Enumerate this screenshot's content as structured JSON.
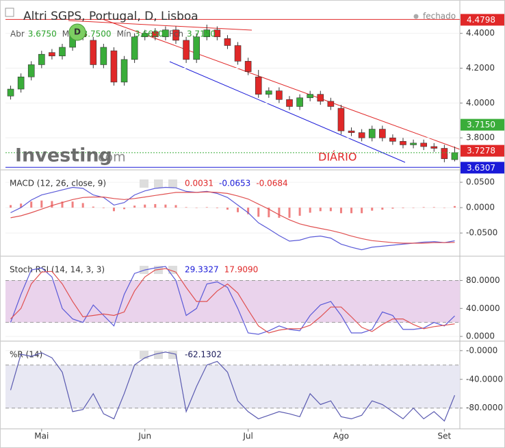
{
  "chart_data": [
    {
      "type": "candlestick",
      "title": "Altri SGPS, Portugal, D, Lisboa",
      "status": "fechado",
      "ohlc_legend": [
        {
          "label": "Abr",
          "value": "3.6750"
        },
        {
          "label": "Máx",
          "value": "3.7500"
        },
        {
          "label": "Mín",
          "value": "3.6650"
        },
        {
          "label": "Fch",
          "value": "3.7150"
        }
      ],
      "badge": "D",
      "annotation": "DIÁRIO",
      "watermark": [
        "Investing",
        ".com"
      ],
      "categories": [
        null,
        null,
        null,
        "Mai",
        null,
        null,
        null,
        null,
        null,
        null,
        null,
        null,
        null,
        "Jun",
        null,
        null,
        null,
        null,
        null,
        null,
        null,
        null,
        null,
        "Jul",
        null,
        null,
        null,
        null,
        null,
        null,
        null,
        null,
        "Ago",
        null,
        null,
        null,
        null,
        null,
        null,
        null,
        null,
        null,
        "Set",
        null
      ],
      "open": [
        4.04,
        4.08,
        4.15,
        4.22,
        4.29,
        4.27,
        4.32,
        4.4,
        4.36,
        4.22,
        4.3,
        4.12,
        4.25,
        4.38,
        4.41,
        4.38,
        4.42,
        4.36,
        4.25,
        4.38,
        4.42,
        4.37,
        4.33,
        4.24,
        4.15,
        4.05,
        4.07,
        4.02,
        3.98,
        4.03,
        4.05,
        4.01,
        3.97,
        3.84,
        3.83,
        3.8,
        3.85,
        3.8,
        3.78,
        3.76,
        3.77,
        3.75,
        3.74,
        3.675
      ],
      "high": [
        4.1,
        4.17,
        4.24,
        4.3,
        4.31,
        4.34,
        4.43,
        4.42,
        4.38,
        4.34,
        4.32,
        4.27,
        4.4,
        4.42,
        4.43,
        4.44,
        4.44,
        4.38,
        4.4,
        4.45,
        4.44,
        4.39,
        4.35,
        4.26,
        4.19,
        4.09,
        4.09,
        4.04,
        4.05,
        4.07,
        4.07,
        4.03,
        3.99,
        3.86,
        3.85,
        3.87,
        3.87,
        3.82,
        3.8,
        3.79,
        3.79,
        3.77,
        3.76,
        3.75
      ],
      "low": [
        4.02,
        4.06,
        4.13,
        4.2,
        4.25,
        4.25,
        4.3,
        4.36,
        4.2,
        4.2,
        4.1,
        4.1,
        4.23,
        4.36,
        4.36,
        4.36,
        4.34,
        4.23,
        4.23,
        4.36,
        4.36,
        4.31,
        4.22,
        4.16,
        4.03,
        4.03,
        4.0,
        3.96,
        3.96,
        4.01,
        3.99,
        3.96,
        3.82,
        3.81,
        3.78,
        3.78,
        3.78,
        3.76,
        3.74,
        3.74,
        3.73,
        3.72,
        3.66,
        3.665
      ],
      "close": [
        4.08,
        4.15,
        4.22,
        4.28,
        4.27,
        4.32,
        4.4,
        4.38,
        4.22,
        4.32,
        4.12,
        4.25,
        4.38,
        4.4,
        4.38,
        4.42,
        4.36,
        4.25,
        4.38,
        4.42,
        4.38,
        4.33,
        4.24,
        4.18,
        4.05,
        4.07,
        4.02,
        3.98,
        4.03,
        4.05,
        4.01,
        3.98,
        3.84,
        3.83,
        3.8,
        3.85,
        3.8,
        3.78,
        3.76,
        3.77,
        3.75,
        3.74,
        3.68,
        3.715
      ],
      "up_color": "#3aad3a",
      "down_color": "#e02828",
      "ylim": [
        3.624,
        4.56
      ],
      "yticks": [
        {
          "value": 3.8,
          "label": "3.8000"
        },
        {
          "value": 4.0,
          "label": "4.0000"
        },
        {
          "value": 4.2,
          "label": "4.2000"
        },
        {
          "value": 4.4,
          "label": "4.4000"
        }
      ],
      "price_labels": [
        {
          "value": 4.4798,
          "color": "#e02828",
          "line": "solid"
        },
        {
          "value": 3.7278,
          "color": "#e02828"
        },
        {
          "value": 3.715,
          "label": "3.7150",
          "color": "#3aad3a",
          "line": "dotted"
        },
        {
          "value": 3.6307,
          "color": "#1a1ad8",
          "line": "solid"
        }
      ]
    },
    {
      "type": "macd",
      "title": "MACD (12, 26, close, 9)",
      "legend_values": [
        {
          "text": "0.0031",
          "color": "#e02828"
        },
        {
          "text": "-0.0653",
          "color": "#1a1ad8"
        },
        {
          "text": "-0.0684",
          "color": "#e02828"
        }
      ],
      "series": [
        {
          "style": "bar",
          "color": "#f08080",
          "values": [
            0.005,
            0.008,
            0.012,
            0.014,
            0.013,
            0.012,
            0.012,
            0.009,
            0.002,
            -0.001,
            -0.007,
            -0.003,
            0.004,
            0.006,
            0.007,
            0.006,
            0.005,
            0.001,
            0,
            0.001,
            -0.001,
            -0.004,
            -0.009,
            -0.013,
            -0.018,
            -0.019,
            -0.02,
            -0.02,
            -0.016,
            -0.01,
            -0.007,
            -0.007,
            -0.011,
            -0.011,
            -0.011,
            -0.006,
            -0.004,
            -0.002,
            -0.001,
            0,
            0.001,
            0.001,
            0,
            0.0031
          ]
        },
        {
          "style": "line",
          "color": "#5a5ad8",
          "values": [
            -0.01,
            0.0,
            0.015,
            0.025,
            0.03,
            0.035,
            0.04,
            0.038,
            0.025,
            0.02,
            0.005,
            0.01,
            0.025,
            0.033,
            0.038,
            0.04,
            0.039,
            0.032,
            0.03,
            0.032,
            0.028,
            0.02,
            0.005,
            -0.01,
            -0.03,
            -0.042,
            -0.055,
            -0.066,
            -0.064,
            -0.058,
            -0.056,
            -0.06,
            -0.072,
            -0.078,
            -0.083,
            -0.078,
            -0.076,
            -0.074,
            -0.072,
            -0.07,
            -0.068,
            -0.067,
            -0.069,
            -0.0653
          ]
        },
        {
          "style": "line",
          "color": "#e05050",
          "values": [
            -0.02,
            -0.016,
            -0.01,
            -0.003,
            0.004,
            0.01,
            0.016,
            0.02,
            0.021,
            0.021,
            0.018,
            0.016,
            0.018,
            0.021,
            0.024,
            0.027,
            0.03,
            0.03,
            0.03,
            0.031,
            0.03,
            0.028,
            0.023,
            0.017,
            0.007,
            -0.003,
            -0.014,
            -0.024,
            -0.032,
            -0.037,
            -0.041,
            -0.045,
            -0.05,
            -0.056,
            -0.061,
            -0.065,
            -0.067,
            -0.069,
            -0.07,
            -0.07,
            -0.07,
            -0.069,
            -0.069,
            -0.0684
          ]
        }
      ],
      "ylim": [
        -0.093,
        0.069
      ],
      "yticks": [
        {
          "value": -0.05,
          "label": "-0.0500"
        },
        {
          "value": 0,
          "label": "0.0000"
        },
        {
          "value": 0.05,
          "label": "0.0500"
        }
      ]
    },
    {
      "type": "oscillator",
      "title": "Stoch RSI (14, 14, 3, 3)",
      "legend_values": [
        {
          "text": "29.3327",
          "color": "#1a1ad8"
        },
        {
          "text": "17.9090",
          "color": "#e02828"
        }
      ],
      "band": [
        20,
        80
      ],
      "band_color": "#ead3ec",
      "series": [
        {
          "style": "line",
          "color": "#5a5ad8",
          "values": [
            20,
            60,
            95,
            98,
            85,
            40,
            25,
            20,
            45,
            30,
            15,
            60,
            90,
            95,
            98,
            100,
            80,
            30,
            40,
            75,
            78,
            70,
            40,
            5,
            3,
            8,
            15,
            10,
            8,
            30,
            45,
            50,
            30,
            5,
            5,
            10,
            35,
            30,
            10,
            10,
            12,
            20,
            15,
            29.3327
          ]
        },
        {
          "style": "line",
          "color": "#e05050",
          "values": [
            25,
            40,
            75,
            92,
            93,
            75,
            50,
            28,
            30,
            32,
            30,
            35,
            65,
            85,
            95,
            97,
            92,
            70,
            50,
            50,
            65,
            75,
            62,
            38,
            15,
            5,
            9,
            11,
            11,
            16,
            28,
            42,
            42,
            28,
            13,
            7,
            17,
            25,
            25,
            17,
            11,
            14,
            16,
            17.909
          ]
        }
      ],
      "ylim": [
        -4.8,
        110.8
      ],
      "yticks": [
        {
          "value": 0,
          "label": "0.0000"
        },
        {
          "value": 40,
          "label": "40.0000"
        },
        {
          "value": 80,
          "label": "80.0000"
        }
      ]
    },
    {
      "type": "oscillator",
      "title": "%R (14)",
      "legend_values": [
        {
          "text": "-62.1302",
          "color": "#1a1a5a"
        }
      ],
      "band": [
        -80,
        -20
      ],
      "band_color": "#e8e8f3",
      "series": [
        {
          "style": "line",
          "color": "#5a5ab0",
          "values": [
            -55,
            -5,
            -8,
            -3,
            -10,
            -30,
            -85,
            -82,
            -60,
            -88,
            -95,
            -60,
            -20,
            -10,
            -5,
            -2,
            -5,
            -85,
            -50,
            -20,
            -15,
            -30,
            -70,
            -85,
            -95,
            -90,
            -85,
            -88,
            -92,
            -60,
            -75,
            -70,
            -92,
            -95,
            -90,
            -70,
            -75,
            -85,
            -95,
            -80,
            -95,
            -85,
            -98,
            -62.1302
          ]
        }
      ],
      "ylim": [
        -107,
        9.4
      ],
      "yticks": [
        {
          "value": -80,
          "label": "-80.0000"
        },
        {
          "value": -40,
          "label": "-40.0000"
        },
        {
          "value": 0,
          "label": "-0.0000"
        }
      ]
    }
  ]
}
